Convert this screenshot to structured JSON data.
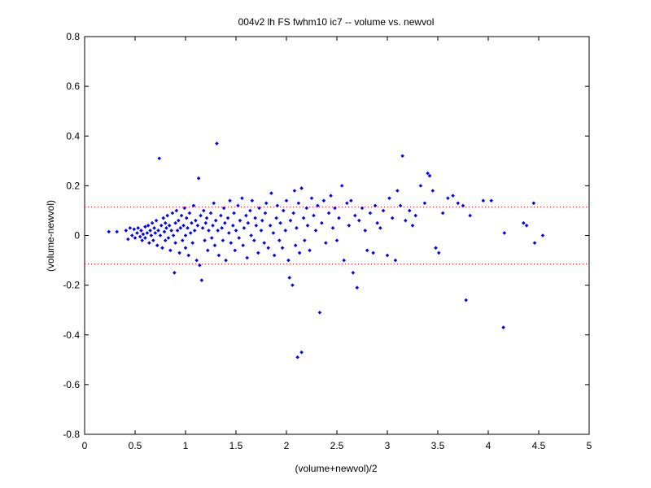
{
  "chart_data": {
    "type": "scatter",
    "title": "004v2 lh FS fwhm10 ic7 -- volume vs. newvol",
    "xlabel": "(volume+newvol)/2",
    "ylabel": "(volume-newvol)",
    "xlim": [
      0,
      5
    ],
    "ylim": [
      -0.8,
      0.8
    ],
    "xticks": [
      "0",
      "0.5",
      "1",
      "1.5",
      "2",
      "2.5",
      "3",
      "3.5",
      "4",
      "4.5",
      "5"
    ],
    "yticks": [
      "-0.8",
      "-0.6",
      "-0.4",
      "-0.2",
      "0",
      "0.2",
      "0.4",
      "0.6",
      "0.8"
    ],
    "grid": false,
    "marker_color": "#0000ff",
    "reference_line_color": "#ff0000",
    "reference_lines": [
      0.115,
      -0.115
    ],
    "points": [
      [
        0.24,
        0.015
      ],
      [
        0.32,
        0.015
      ],
      [
        0.41,
        0.02
      ],
      [
        0.43,
        -0.015
      ],
      [
        0.45,
        0.03
      ],
      [
        0.47,
        0.0
      ],
      [
        0.49,
        0.025
      ],
      [
        0.5,
        -0.01
      ],
      [
        0.52,
        0.01
      ],
      [
        0.53,
        0.03
      ],
      [
        0.55,
        -0.005
      ],
      [
        0.56,
        0.02
      ],
      [
        0.57,
        -0.02
      ],
      [
        0.58,
        0.005
      ],
      [
        0.6,
        0.035
      ],
      [
        0.6,
        -0.01
      ],
      [
        0.62,
        0.01
      ],
      [
        0.63,
        0.04
      ],
      [
        0.64,
        -0.03
      ],
      [
        0.65,
        0.02
      ],
      [
        0.66,
        0.0
      ],
      [
        0.67,
        0.05
      ],
      [
        0.68,
        -0.02
      ],
      [
        0.69,
        0.03
      ],
      [
        0.7,
        0.01
      ],
      [
        0.71,
        0.06
      ],
      [
        0.72,
        -0.04
      ],
      [
        0.73,
        0.02
      ],
      [
        0.74,
        0.31
      ],
      [
        0.75,
        0.0
      ],
      [
        0.76,
        0.04
      ],
      [
        0.77,
        -0.05
      ],
      [
        0.78,
        0.07
      ],
      [
        0.79,
        0.015
      ],
      [
        0.8,
        0.05
      ],
      [
        0.8,
        -0.02
      ],
      [
        0.81,
        0.03
      ],
      [
        0.82,
        0.08
      ],
      [
        0.83,
        -0.01
      ],
      [
        0.84,
        0.04
      ],
      [
        0.85,
        -0.06
      ],
      [
        0.86,
        0.02
      ],
      [
        0.87,
        0.09
      ],
      [
        0.88,
        0.0
      ],
      [
        0.89,
        -0.15
      ],
      [
        0.9,
        0.05
      ],
      [
        0.9,
        -0.03
      ],
      [
        0.91,
        0.1
      ],
      [
        0.92,
        0.02
      ],
      [
        0.93,
        0.06
      ],
      [
        0.94,
        -0.07
      ],
      [
        0.95,
        0.03
      ],
      [
        0.96,
        0.08
      ],
      [
        0.97,
        -0.02
      ],
      [
        0.98,
        0.04
      ],
      [
        0.99,
        0.11
      ],
      [
        1.0,
        0.0
      ],
      [
        1.0,
        -0.05
      ],
      [
        1.01,
        0.07
      ],
      [
        1.02,
        0.03
      ],
      [
        1.03,
        -0.08
      ],
      [
        1.04,
        0.09
      ],
      [
        1.05,
        0.01
      ],
      [
        1.06,
        0.05
      ],
      [
        1.07,
        -0.03
      ],
      [
        1.08,
        0.12
      ],
      [
        1.09,
        0.02
      ],
      [
        1.1,
        0.06
      ],
      [
        1.11,
        -0.1
      ],
      [
        1.12,
        0.04
      ],
      [
        1.13,
        0.23
      ],
      [
        1.14,
        -0.12
      ],
      [
        1.15,
        0.08
      ],
      [
        1.16,
        -0.18
      ],
      [
        1.17,
        0.03
      ],
      [
        1.18,
        0.1
      ],
      [
        1.19,
        -0.02
      ],
      [
        1.2,
        0.05
      ],
      [
        1.21,
        0.07
      ],
      [
        1.22,
        -0.06
      ],
      [
        1.23,
        0.02
      ],
      [
        1.25,
        0.09
      ],
      [
        1.26,
        -0.01
      ],
      [
        1.27,
        0.04
      ],
      [
        1.28,
        0.13
      ],
      [
        1.29,
        -0.04
      ],
      [
        1.3,
        0.06
      ],
      [
        1.31,
        0.37
      ],
      [
        1.32,
        0.02
      ],
      [
        1.33,
        -0.08
      ],
      [
        1.35,
        0.08
      ],
      [
        1.36,
        0.03
      ],
      [
        1.37,
        -0.02
      ],
      [
        1.38,
        0.11
      ],
      [
        1.39,
        0.05
      ],
      [
        1.4,
        -0.1
      ],
      [
        1.42,
        0.07
      ],
      [
        1.43,
        0.01
      ],
      [
        1.44,
        0.14
      ],
      [
        1.45,
        -0.03
      ],
      [
        1.47,
        0.04
      ],
      [
        1.48,
        0.09
      ],
      [
        1.49,
        -0.06
      ],
      [
        1.5,
        0.02
      ],
      [
        1.52,
        0.12
      ],
      [
        1.53,
        -0.01
      ],
      [
        1.54,
        0.06
      ],
      [
        1.56,
        0.15
      ],
      [
        1.57,
        -0.04
      ],
      [
        1.58,
        0.03
      ],
      [
        1.6,
        0.08
      ],
      [
        1.61,
        -0.09
      ],
      [
        1.62,
        0.05
      ],
      [
        1.64,
        0.1
      ],
      [
        1.65,
        0.0
      ],
      [
        1.66,
        0.14
      ],
      [
        1.68,
        -0.02
      ],
      [
        1.69,
        0.07
      ],
      [
        1.7,
        0.04
      ],
      [
        1.72,
        -0.07
      ],
      [
        1.73,
        0.11
      ],
      [
        1.75,
        0.02
      ],
      [
        1.76,
        0.06
      ],
      [
        1.78,
        -0.03
      ],
      [
        1.79,
        0.09
      ],
      [
        1.8,
        0.13
      ],
      [
        1.82,
        -0.05
      ],
      [
        1.84,
        0.04
      ],
      [
        1.85,
        0.17
      ],
      [
        1.87,
        0.01
      ],
      [
        1.88,
        -0.08
      ],
      [
        1.9,
        0.07
      ],
      [
        1.91,
        0.12
      ],
      [
        1.93,
        -0.02
      ],
      [
        1.94,
        0.05
      ],
      [
        1.96,
        -0.05
      ],
      [
        1.97,
        0.1
      ],
      [
        1.99,
        0.02
      ],
      [
        2.0,
        0.14
      ],
      [
        2.02,
        -0.1
      ],
      [
        2.03,
        -0.17
      ],
      [
        2.04,
        0.06
      ],
      [
        2.06,
        -0.2
      ],
      [
        2.07,
        0.09
      ],
      [
        2.08,
        0.18
      ],
      [
        2.09,
        -0.04
      ],
      [
        2.1,
        0.03
      ],
      [
        2.11,
        -0.49
      ],
      [
        2.12,
        0.13
      ],
      [
        2.13,
        -0.07
      ],
      [
        2.15,
        0.19
      ],
      [
        2.15,
        -0.47
      ],
      [
        2.17,
        0.07
      ],
      [
        2.18,
        -0.02
      ],
      [
        2.2,
        0.11
      ],
      [
        2.21,
        0.04
      ],
      [
        2.23,
        -0.06
      ],
      [
        2.25,
        0.15
      ],
      [
        2.27,
        0.08
      ],
      [
        2.29,
        0.02
      ],
      [
        2.31,
        0.12
      ],
      [
        2.33,
        -0.31
      ],
      [
        2.35,
        0.05
      ],
      [
        2.37,
        0.14
      ],
      [
        2.39,
        -0.03
      ],
      [
        2.42,
        0.09
      ],
      [
        2.44,
        0.16
      ],
      [
        2.46,
        0.03
      ],
      [
        2.48,
        0.11
      ],
      [
        2.5,
        -0.02
      ],
      [
        2.52,
        0.07
      ],
      [
        2.55,
        0.2
      ],
      [
        2.57,
        -0.1
      ],
      [
        2.6,
        0.13
      ],
      [
        2.62,
        0.04
      ],
      [
        2.64,
        0.14
      ],
      [
        2.66,
        -0.15
      ],
      [
        2.68,
        0.08
      ],
      [
        2.7,
        -0.21
      ],
      [
        2.72,
        0.06
      ],
      [
        2.75,
        0.11
      ],
      [
        2.78,
        0.02
      ],
      [
        2.8,
        -0.06
      ],
      [
        2.83,
        0.09
      ],
      [
        2.86,
        -0.07
      ],
      [
        2.88,
        0.12
      ],
      [
        2.9,
        0.05
      ],
      [
        2.93,
        0.03
      ],
      [
        2.96,
        0.1
      ],
      [
        3.0,
        -0.08
      ],
      [
        3.02,
        0.15
      ],
      [
        3.05,
        0.07
      ],
      [
        3.08,
        -0.1
      ],
      [
        3.1,
        0.18
      ],
      [
        3.13,
        0.12
      ],
      [
        3.15,
        0.32
      ],
      [
        3.18,
        0.06
      ],
      [
        3.22,
        0.1
      ],
      [
        3.25,
        0.04
      ],
      [
        3.28,
        0.08
      ],
      [
        3.33,
        0.2
      ],
      [
        3.37,
        0.13
      ],
      [
        3.4,
        0.25
      ],
      [
        3.42,
        0.24
      ],
      [
        3.45,
        0.18
      ],
      [
        3.48,
        -0.05
      ],
      [
        3.51,
        -0.07
      ],
      [
        3.55,
        0.09
      ],
      [
        3.6,
        0.15
      ],
      [
        3.65,
        0.16
      ],
      [
        3.7,
        0.13
      ],
      [
        3.75,
        0.12
      ],
      [
        3.78,
        -0.26
      ],
      [
        3.82,
        0.08
      ],
      [
        3.95,
        0.14
      ],
      [
        4.03,
        0.14
      ],
      [
        4.15,
        -0.37
      ],
      [
        4.16,
        0.01
      ],
      [
        4.35,
        0.05
      ],
      [
        4.38,
        0.04
      ],
      [
        4.45,
        0.13
      ],
      [
        4.46,
        -0.03
      ],
      [
        4.54,
        0.0
      ]
    ]
  }
}
